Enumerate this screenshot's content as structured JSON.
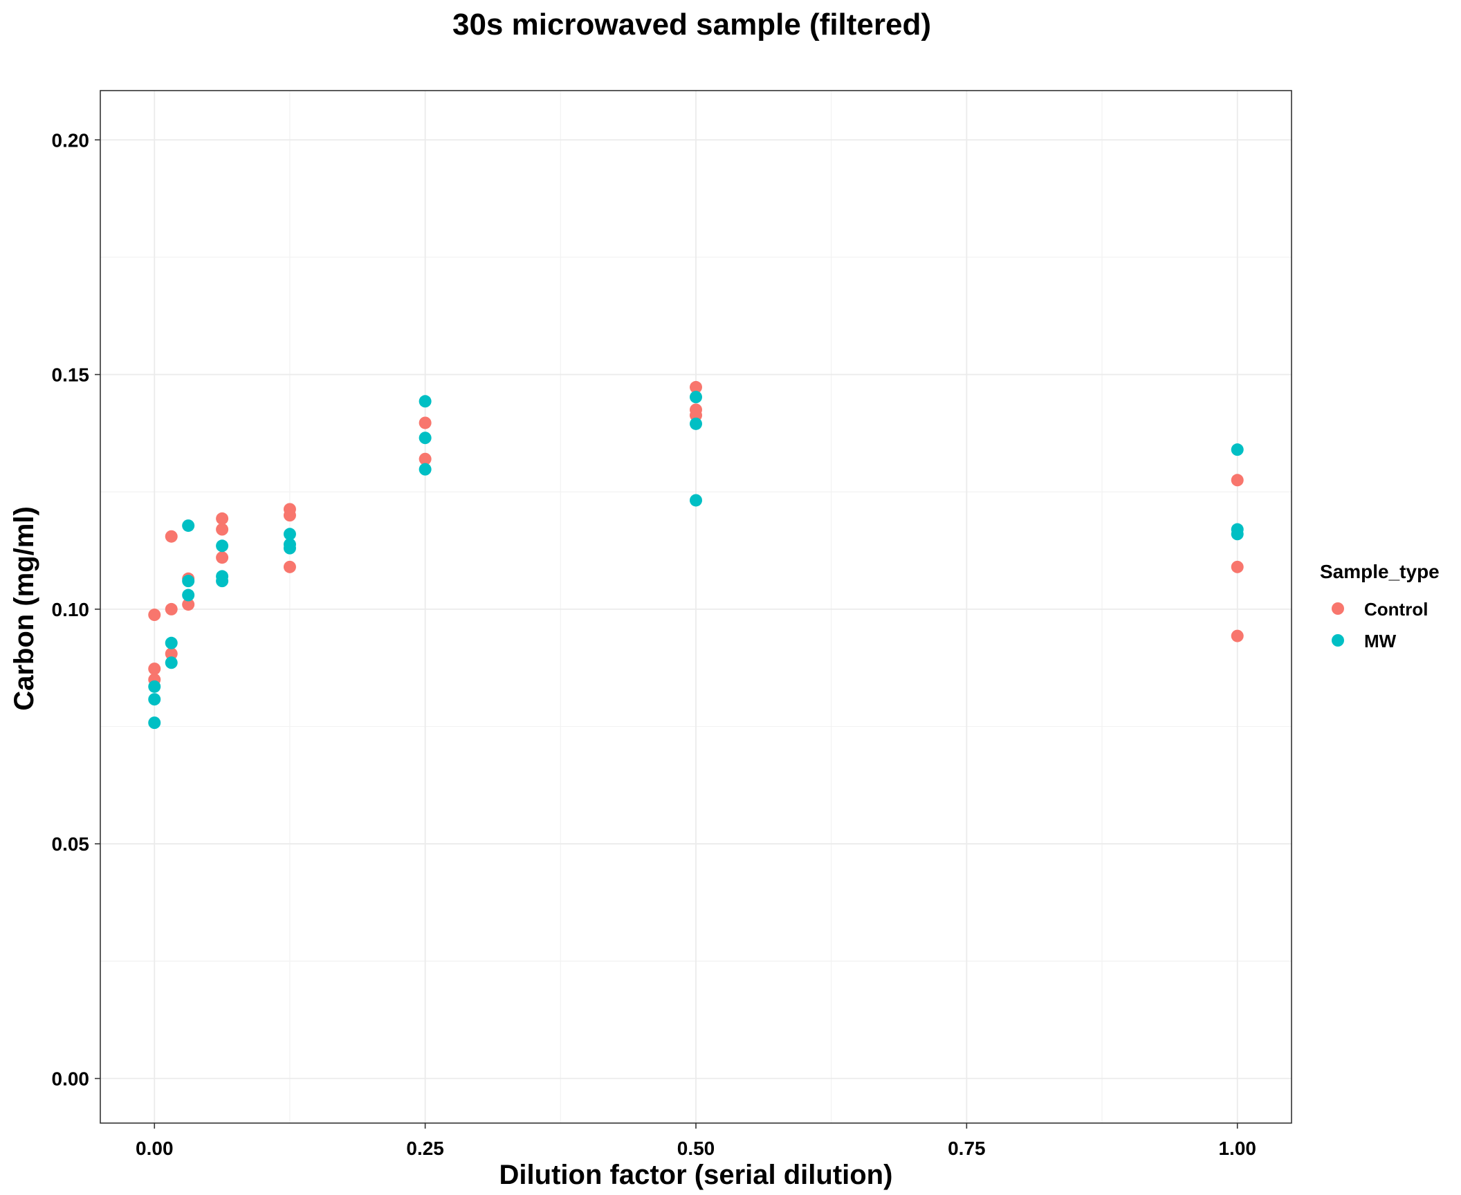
{
  "chart_data": {
    "type": "scatter",
    "title": "30s microwaved sample (filtered)",
    "xlabel": "Dilution factor (serial dilution)",
    "ylabel": "Carbon (mg/ml)",
    "xlim": [
      -0.05,
      1.05
    ],
    "ylim": [
      -0.0095,
      0.2105
    ],
    "x_ticks": [
      0.0,
      0.25,
      0.5,
      0.75,
      1.0
    ],
    "x_tick_labels": [
      "0.00",
      "0.25",
      "0.50",
      "0.75",
      "1.00"
    ],
    "y_ticks": [
      0.0,
      0.05,
      0.1,
      0.15,
      0.2
    ],
    "y_tick_labels": [
      "0.00",
      "0.05",
      "0.10",
      "0.15",
      "0.20"
    ],
    "grid": true,
    "legend": {
      "title": "Sample_type",
      "position": "right"
    },
    "series": [
      {
        "name": "Control",
        "color": "#F8766D",
        "points": [
          {
            "x": 0.0,
            "y": 0.0988
          },
          {
            "x": 0.0,
            "y": 0.0873
          },
          {
            "x": 0.0,
            "y": 0.085
          },
          {
            "x": 0.015625,
            "y": 0.1155
          },
          {
            "x": 0.015625,
            "y": 0.1
          },
          {
            "x": 0.015625,
            "y": 0.0905
          },
          {
            "x": 0.03125,
            "y": 0.1065
          },
          {
            "x": 0.03125,
            "y": 0.101
          },
          {
            "x": 0.0625,
            "y": 0.1193
          },
          {
            "x": 0.0625,
            "y": 0.117
          },
          {
            "x": 0.0625,
            "y": 0.111
          },
          {
            "x": 0.125,
            "y": 0.1213
          },
          {
            "x": 0.125,
            "y": 0.12
          },
          {
            "x": 0.125,
            "y": 0.109
          },
          {
            "x": 0.25,
            "y": 0.1397
          },
          {
            "x": 0.25,
            "y": 0.132
          },
          {
            "x": 0.5,
            "y": 0.1473
          },
          {
            "x": 0.5,
            "y": 0.1425
          },
          {
            "x": 0.5,
            "y": 0.1413
          },
          {
            "x": 1.0,
            "y": 0.1275
          },
          {
            "x": 1.0,
            "y": 0.109
          },
          {
            "x": 1.0,
            "y": 0.0943
          }
        ]
      },
      {
        "name": "MW",
        "color": "#00BFC4",
        "points": [
          {
            "x": 0.0,
            "y": 0.0835
          },
          {
            "x": 0.0,
            "y": 0.0808
          },
          {
            "x": 0.0,
            "y": 0.0758
          },
          {
            "x": 0.015625,
            "y": 0.0928
          },
          {
            "x": 0.015625,
            "y": 0.0886
          },
          {
            "x": 0.03125,
            "y": 0.1178
          },
          {
            "x": 0.03125,
            "y": 0.106
          },
          {
            "x": 0.03125,
            "y": 0.103
          },
          {
            "x": 0.0625,
            "y": 0.1135
          },
          {
            "x": 0.0625,
            "y": 0.107
          },
          {
            "x": 0.0625,
            "y": 0.106
          },
          {
            "x": 0.125,
            "y": 0.116
          },
          {
            "x": 0.125,
            "y": 0.1138
          },
          {
            "x": 0.125,
            "y": 0.113
          },
          {
            "x": 0.25,
            "y": 0.1443
          },
          {
            "x": 0.25,
            "y": 0.1365
          },
          {
            "x": 0.25,
            "y": 0.1298
          },
          {
            "x": 0.5,
            "y": 0.1452
          },
          {
            "x": 0.5,
            "y": 0.1395
          },
          {
            "x": 0.5,
            "y": 0.1232
          },
          {
            "x": 1.0,
            "y": 0.134
          },
          {
            "x": 1.0,
            "y": 0.117
          },
          {
            "x": 1.0,
            "y": 0.116
          }
        ]
      }
    ]
  }
}
